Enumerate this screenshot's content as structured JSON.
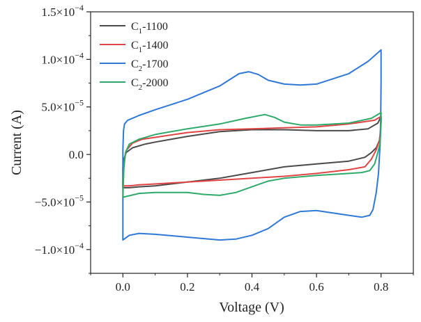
{
  "chart_data": {
    "type": "line",
    "xlabel": "Voltage (V)",
    "ylabel": "Current (A)",
    "xlim": [
      -0.1,
      0.9
    ],
    "ylim": [
      -0.000125,
      0.00015
    ],
    "x_ticks": [
      0.0,
      0.2,
      0.4,
      0.6,
      0.8
    ],
    "x_tick_labels": [
      "0.0",
      "0.2",
      "0.4",
      "0.6",
      "0.8"
    ],
    "y_ticks": [
      -0.0001,
      -5e-05,
      0,
      5e-05,
      0.0001,
      0.00015
    ],
    "y_tick_labels": [
      {
        "mantissa": "−1.0×10",
        "exp": "−4"
      },
      {
        "mantissa": "−5.0×10",
        "exp": "−5"
      },
      {
        "mantissa": "0.0",
        "exp": ""
      },
      {
        "mantissa": "5.0×10",
        "exp": "−5"
      },
      {
        "mantissa": "1.0×10",
        "exp": "−4"
      },
      {
        "mantissa": "1.5×10",
        "exp": "−4"
      }
    ],
    "legend_position": "top-left",
    "series": [
      {
        "name": "C1-1100",
        "label_main": "C",
        "label_sub": "1",
        "label_tail": "-1100",
        "color": "#4a4a4a",
        "points": [
          [
            0.0,
            -1.5e-05
          ],
          [
            0.003,
            -5e-06
          ],
          [
            0.01,
            2e-06
          ],
          [
            0.03,
            7e-06
          ],
          [
            0.07,
            1.1e-05
          ],
          [
            0.1,
            1.3e-05
          ],
          [
            0.2,
            1.9e-05
          ],
          [
            0.3,
            2.4e-05
          ],
          [
            0.4,
            2.6e-05
          ],
          [
            0.5,
            2.6e-05
          ],
          [
            0.6,
            2.5e-05
          ],
          [
            0.7,
            2.5e-05
          ],
          [
            0.76,
            2.7e-05
          ],
          [
            0.79,
            3.3e-05
          ],
          [
            0.8,
            4e-05
          ],
          [
            0.8,
            3.4e-05
          ],
          [
            0.798,
            2.2e-05
          ],
          [
            0.795,
            1.5e-05
          ],
          [
            0.785,
            7e-06
          ],
          [
            0.77,
            2e-06
          ],
          [
            0.75,
            -3e-06
          ],
          [
            0.7,
            -7e-06
          ],
          [
            0.6,
            -1e-05
          ],
          [
            0.5,
            -1.3e-05
          ],
          [
            0.4,
            -1.9e-05
          ],
          [
            0.3,
            -2.5e-05
          ],
          [
            0.2,
            -2.9e-05
          ],
          [
            0.1,
            -3.3e-05
          ],
          [
            0.05,
            -3.4e-05
          ],
          [
            0.02,
            -3.5e-05
          ],
          [
            0.0,
            -3.5e-05
          ],
          [
            0.0,
            -1.5e-05
          ]
        ]
      },
      {
        "name": "C1-1400",
        "label_main": "C",
        "label_sub": "1",
        "label_tail": "-1400",
        "color": "#e04444",
        "points": [
          [
            0.0,
            -3e-05
          ],
          [
            0.003,
            -1e-05
          ],
          [
            0.01,
            4e-06
          ],
          [
            0.03,
            1.2e-05
          ],
          [
            0.06,
            1.6e-05
          ],
          [
            0.1,
            1.8e-05
          ],
          [
            0.2,
            2.3e-05
          ],
          [
            0.3,
            2.6e-05
          ],
          [
            0.4,
            2.7e-05
          ],
          [
            0.5,
            2.8e-05
          ],
          [
            0.6,
            2.9e-05
          ],
          [
            0.7,
            3.2e-05
          ],
          [
            0.78,
            3.6e-05
          ],
          [
            0.8,
            4e-05
          ],
          [
            0.8,
            3.4e-05
          ],
          [
            0.798,
            2.5e-05
          ],
          [
            0.795,
            1.5e-05
          ],
          [
            0.785,
            5e-06
          ],
          [
            0.77,
            -5e-06
          ],
          [
            0.75,
            -1.3e-05
          ],
          [
            0.7,
            -1.6e-05
          ],
          [
            0.6,
            -2e-05
          ],
          [
            0.5,
            -2.3e-05
          ],
          [
            0.4,
            -2.5e-05
          ],
          [
            0.3,
            -2.7e-05
          ],
          [
            0.2,
            -2.9e-05
          ],
          [
            0.1,
            -3.1e-05
          ],
          [
            0.05,
            -3.2e-05
          ],
          [
            0.02,
            -3.3e-05
          ],
          [
            0.0,
            -3.3e-05
          ],
          [
            0.0,
            -3e-05
          ]
        ]
      },
      {
        "name": "C2-1700",
        "label_main": "C",
        "label_sub": "2",
        "label_tail": "-1700",
        "color": "#2f78d6",
        "points": [
          [
            0.0,
            -9e-05
          ],
          [
            0.0,
            5e-06
          ],
          [
            0.002,
            2.5e-05
          ],
          [
            0.005,
            3.2e-05
          ],
          [
            0.015,
            3.6e-05
          ],
          [
            0.05,
            4.1e-05
          ],
          [
            0.1,
            4.7e-05
          ],
          [
            0.2,
            5.8e-05
          ],
          [
            0.3,
            7.2e-05
          ],
          [
            0.36,
            8.5e-05
          ],
          [
            0.39,
            8.7e-05
          ],
          [
            0.42,
            8.4e-05
          ],
          [
            0.45,
            7.8e-05
          ],
          [
            0.5,
            7.4e-05
          ],
          [
            0.55,
            7.3e-05
          ],
          [
            0.6,
            7.4e-05
          ],
          [
            0.7,
            8.5e-05
          ],
          [
            0.76,
            9.8e-05
          ],
          [
            0.8,
            0.00011
          ],
          [
            0.8,
            7.5e-05
          ],
          [
            0.799,
            4e-05
          ],
          [
            0.797,
            1e-05
          ],
          [
            0.792,
            -2e-05
          ],
          [
            0.785,
            -4e-05
          ],
          [
            0.775,
            -5.8e-05
          ],
          [
            0.765,
            -6.4e-05
          ],
          [
            0.74,
            -6.6e-05
          ],
          [
            0.7,
            -6.4e-05
          ],
          [
            0.6,
            -5.9e-05
          ],
          [
            0.55,
            -6e-05
          ],
          [
            0.5,
            -6.6e-05
          ],
          [
            0.45,
            -7.8e-05
          ],
          [
            0.4,
            -8.5e-05
          ],
          [
            0.35,
            -8.9e-05
          ],
          [
            0.3,
            -9e-05
          ],
          [
            0.2,
            -8.7e-05
          ],
          [
            0.1,
            -8.4e-05
          ],
          [
            0.05,
            -8.3e-05
          ],
          [
            0.02,
            -8.5e-05
          ],
          [
            0.0,
            -9e-05
          ]
        ]
      },
      {
        "name": "C2-2000",
        "label_main": "C",
        "label_sub": "2",
        "label_tail": "-2000",
        "color": "#2daa6a",
        "points": [
          [
            0.0,
            -4.5e-05
          ],
          [
            0.003,
            -1.5e-05
          ],
          [
            0.008,
            2e-06
          ],
          [
            0.02,
            1.1e-05
          ],
          [
            0.05,
            1.6e-05
          ],
          [
            0.1,
            2.1e-05
          ],
          [
            0.2,
            2.7e-05
          ],
          [
            0.3,
            3.2e-05
          ],
          [
            0.38,
            3.8e-05
          ],
          [
            0.44,
            4.2e-05
          ],
          [
            0.47,
            3.9e-05
          ],
          [
            0.5,
            3.4e-05
          ],
          [
            0.55,
            3.1e-05
          ],
          [
            0.6,
            3.1e-05
          ],
          [
            0.7,
            3.3e-05
          ],
          [
            0.77,
            3.8e-05
          ],
          [
            0.8,
            4.4e-05
          ],
          [
            0.8,
            3.7e-05
          ],
          [
            0.799,
            2.5e-05
          ],
          [
            0.797,
            1.2e-05
          ],
          [
            0.79,
            2e-06
          ],
          [
            0.78,
            -1e-05
          ],
          [
            0.765,
            -1.7e-05
          ],
          [
            0.74,
            -1.9e-05
          ],
          [
            0.7,
            -2e-05
          ],
          [
            0.6,
            -2.2e-05
          ],
          [
            0.5,
            -2.5e-05
          ],
          [
            0.45,
            -2.8e-05
          ],
          [
            0.4,
            -3.4e-05
          ],
          [
            0.35,
            -4e-05
          ],
          [
            0.3,
            -4.3e-05
          ],
          [
            0.25,
            -4.2e-05
          ],
          [
            0.2,
            -4e-05
          ],
          [
            0.1,
            -4e-05
          ],
          [
            0.05,
            -4.1e-05
          ],
          [
            0.0,
            -4.5e-05
          ]
        ]
      }
    ]
  }
}
